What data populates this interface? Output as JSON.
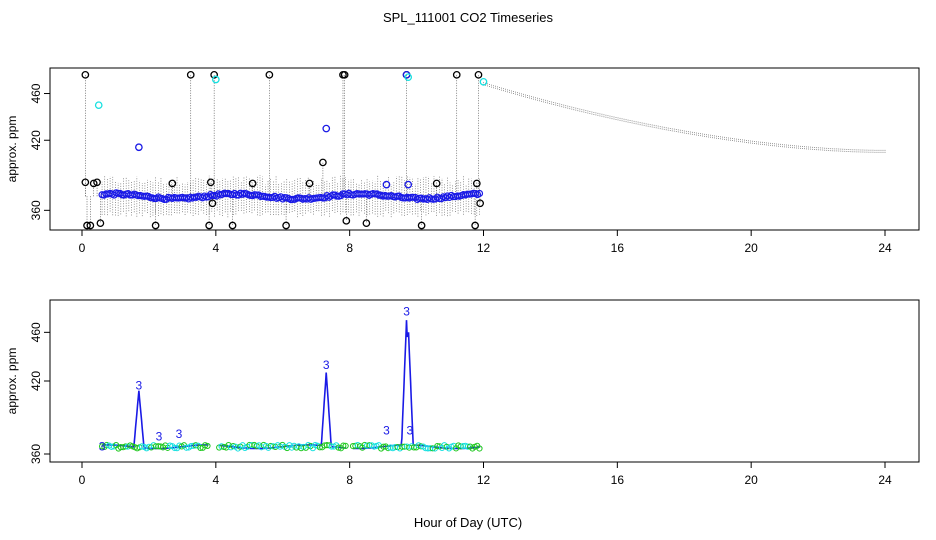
{
  "title": "SPL_111001  CO2 Timeseries",
  "xlabel": "Hour of Day (UTC)",
  "colors": {
    "black": "#000000",
    "blue": "#1a1ae6",
    "cyan": "#17e0e0",
    "green": "#1ec81e",
    "grey": "#555555"
  },
  "chart_data": [
    {
      "type": "scatter",
      "ylabel": "approx. ppm",
      "xlim": [
        0,
        24
      ],
      "ylim": [
        350,
        475
      ],
      "xticks": [
        0,
        4,
        8,
        12,
        16,
        20,
        24
      ],
      "yticks": [
        360,
        420,
        460
      ],
      "series": [
        {
          "name": "outliers (black)",
          "points": [
            [
              0.1,
              476
            ],
            [
              0.1,
              384
            ],
            [
              0.15,
              347
            ],
            [
              0.25,
              347
            ],
            [
              0.35,
              383
            ],
            [
              0.45,
              384
            ],
            [
              0.55,
              349
            ],
            [
              2.2,
              347
            ],
            [
              2.7,
              383
            ],
            [
              3.25,
              476
            ],
            [
              3.8,
              347
            ],
            [
              3.85,
              384
            ],
            [
              3.9,
              366
            ],
            [
              3.95,
              476
            ],
            [
              4.5,
              347
            ],
            [
              5.1,
              383
            ],
            [
              5.6,
              476
            ],
            [
              6.1,
              347
            ],
            [
              6.8,
              383
            ],
            [
              7.2,
              401
            ],
            [
              7.8,
              476
            ],
            [
              7.85,
              476
            ],
            [
              7.9,
              351
            ],
            [
              8.5,
              349
            ],
            [
              9.7,
              476
            ],
            [
              10.15,
              347
            ],
            [
              10.6,
              383
            ],
            [
              11.2,
              476
            ],
            [
              11.75,
              347
            ],
            [
              11.8,
              383
            ],
            [
              11.85,
              476
            ],
            [
              11.9,
              366
            ]
          ]
        },
        {
          "name": "flagged (cyan)",
          "points": [
            [
              0.5,
              450
            ],
            [
              4.0,
              472
            ],
            [
              9.75,
              474
            ],
            [
              12.0,
              470
            ]
          ]
        },
        {
          "name": "spikes (blue)",
          "points": [
            [
              1.7,
              414
            ],
            [
              7.3,
              430
            ],
            [
              9.1,
              382
            ],
            [
              9.7,
              476
            ],
            [
              9.75,
              382
            ]
          ]
        },
        {
          "name": "valid (blue band)",
          "x_range": [
            0.6,
            11.9
          ],
          "baseline": 372
        },
        {
          "name": "fitted curve (grey)",
          "x_range": [
            12.0,
            24.0
          ],
          "y_start": 468,
          "y_end": 410
        }
      ]
    },
    {
      "type": "line",
      "ylabel": "approx. ppm",
      "xlim": [
        0,
        24
      ],
      "ylim": [
        360,
        480
      ],
      "xticks": [
        0,
        4,
        8,
        12,
        16,
        20,
        24
      ],
      "yticks": [
        360,
        420,
        460
      ],
      "series": [
        {
          "name": "filtered CO2 (blue)",
          "segments": [
            [
              0.6,
              3.8
            ],
            [
              4.1,
              7.9
            ],
            [
              8.1,
              11.9
            ]
          ],
          "baseline": 366
        },
        {
          "name": "peaks",
          "points": [
            [
              1.7,
              412
            ],
            [
              7.3,
              427
            ],
            [
              9.7,
              470
            ],
            [
              9.75,
              466
            ]
          ]
        }
      ],
      "labels": [
        {
          "text": "3",
          "x": 0.6,
          "y": 363
        },
        {
          "text": "3",
          "x": 1.7,
          "y": 413
        },
        {
          "text": "3",
          "x": 2.3,
          "y": 371
        },
        {
          "text": "3",
          "x": 2.9,
          "y": 373
        },
        {
          "text": "3",
          "x": 7.3,
          "y": 430
        },
        {
          "text": "3",
          "x": 9.1,
          "y": 376
        },
        {
          "text": "3",
          "x": 9.7,
          "y": 474
        },
        {
          "text": "3",
          "x": 9.8,
          "y": 376
        }
      ]
    }
  ]
}
